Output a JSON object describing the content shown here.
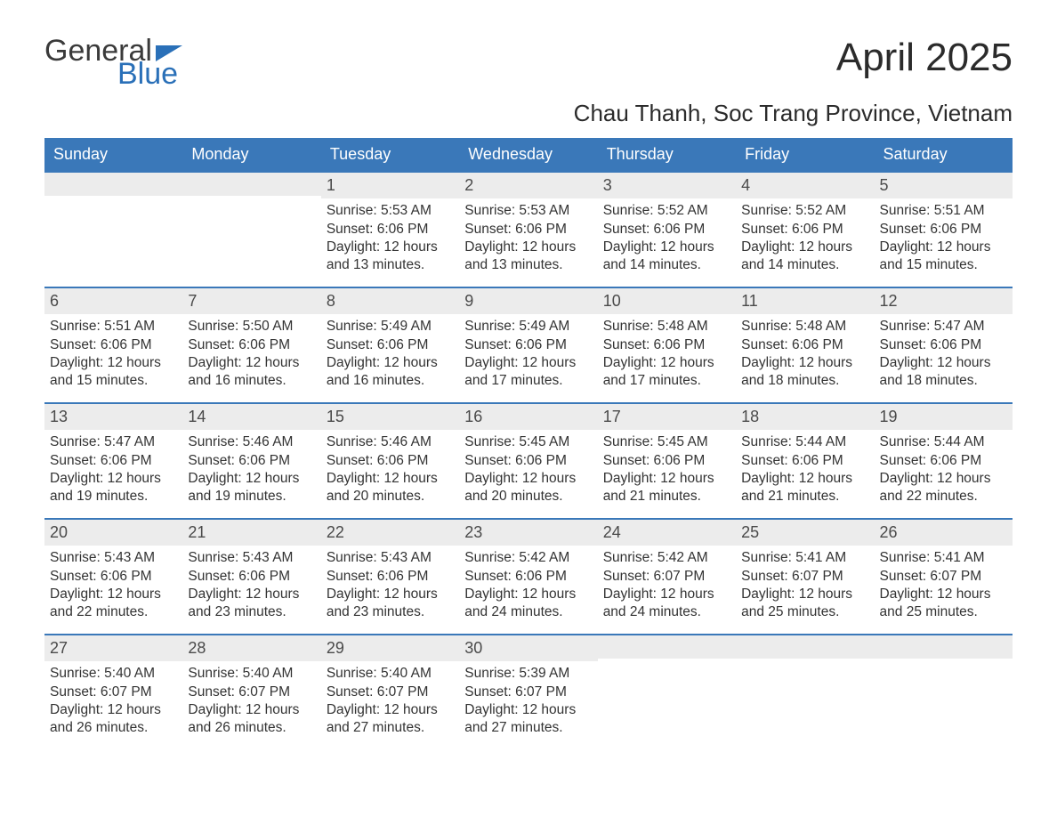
{
  "logo": {
    "word1": "General",
    "word2": "Blue"
  },
  "title": "April 2025",
  "subtitle": "Chau Thanh, Soc Trang Province, Vietnam",
  "colors": {
    "header_bg": "#3a78b9",
    "header_text": "#ffffff",
    "week_border": "#3a78b9",
    "daynum_bg": "#ececec",
    "text": "#333333",
    "logo_blue": "#2a70b8"
  },
  "dow": [
    "Sunday",
    "Monday",
    "Tuesday",
    "Wednesday",
    "Thursday",
    "Friday",
    "Saturday"
  ],
  "weeks": [
    [
      {
        "num": "",
        "lines": []
      },
      {
        "num": "",
        "lines": []
      },
      {
        "num": "1",
        "lines": [
          "Sunrise: 5:53 AM",
          "Sunset: 6:06 PM",
          "Daylight: 12 hours",
          "and 13 minutes."
        ]
      },
      {
        "num": "2",
        "lines": [
          "Sunrise: 5:53 AM",
          "Sunset: 6:06 PM",
          "Daylight: 12 hours",
          "and 13 minutes."
        ]
      },
      {
        "num": "3",
        "lines": [
          "Sunrise: 5:52 AM",
          "Sunset: 6:06 PM",
          "Daylight: 12 hours",
          "and 14 minutes."
        ]
      },
      {
        "num": "4",
        "lines": [
          "Sunrise: 5:52 AM",
          "Sunset: 6:06 PM",
          "Daylight: 12 hours",
          "and 14 minutes."
        ]
      },
      {
        "num": "5",
        "lines": [
          "Sunrise: 5:51 AM",
          "Sunset: 6:06 PM",
          "Daylight: 12 hours",
          "and 15 minutes."
        ]
      }
    ],
    [
      {
        "num": "6",
        "lines": [
          "Sunrise: 5:51 AM",
          "Sunset: 6:06 PM",
          "Daylight: 12 hours",
          "and 15 minutes."
        ]
      },
      {
        "num": "7",
        "lines": [
          "Sunrise: 5:50 AM",
          "Sunset: 6:06 PM",
          "Daylight: 12 hours",
          "and 16 minutes."
        ]
      },
      {
        "num": "8",
        "lines": [
          "Sunrise: 5:49 AM",
          "Sunset: 6:06 PM",
          "Daylight: 12 hours",
          "and 16 minutes."
        ]
      },
      {
        "num": "9",
        "lines": [
          "Sunrise: 5:49 AM",
          "Sunset: 6:06 PM",
          "Daylight: 12 hours",
          "and 17 minutes."
        ]
      },
      {
        "num": "10",
        "lines": [
          "Sunrise: 5:48 AM",
          "Sunset: 6:06 PM",
          "Daylight: 12 hours",
          "and 17 minutes."
        ]
      },
      {
        "num": "11",
        "lines": [
          "Sunrise: 5:48 AM",
          "Sunset: 6:06 PM",
          "Daylight: 12 hours",
          "and 18 minutes."
        ]
      },
      {
        "num": "12",
        "lines": [
          "Sunrise: 5:47 AM",
          "Sunset: 6:06 PM",
          "Daylight: 12 hours",
          "and 18 minutes."
        ]
      }
    ],
    [
      {
        "num": "13",
        "lines": [
          "Sunrise: 5:47 AM",
          "Sunset: 6:06 PM",
          "Daylight: 12 hours",
          "and 19 minutes."
        ]
      },
      {
        "num": "14",
        "lines": [
          "Sunrise: 5:46 AM",
          "Sunset: 6:06 PM",
          "Daylight: 12 hours",
          "and 19 minutes."
        ]
      },
      {
        "num": "15",
        "lines": [
          "Sunrise: 5:46 AM",
          "Sunset: 6:06 PM",
          "Daylight: 12 hours",
          "and 20 minutes."
        ]
      },
      {
        "num": "16",
        "lines": [
          "Sunrise: 5:45 AM",
          "Sunset: 6:06 PM",
          "Daylight: 12 hours",
          "and 20 minutes."
        ]
      },
      {
        "num": "17",
        "lines": [
          "Sunrise: 5:45 AM",
          "Sunset: 6:06 PM",
          "Daylight: 12 hours",
          "and 21 minutes."
        ]
      },
      {
        "num": "18",
        "lines": [
          "Sunrise: 5:44 AM",
          "Sunset: 6:06 PM",
          "Daylight: 12 hours",
          "and 21 minutes."
        ]
      },
      {
        "num": "19",
        "lines": [
          "Sunrise: 5:44 AM",
          "Sunset: 6:06 PM",
          "Daylight: 12 hours",
          "and 22 minutes."
        ]
      }
    ],
    [
      {
        "num": "20",
        "lines": [
          "Sunrise: 5:43 AM",
          "Sunset: 6:06 PM",
          "Daylight: 12 hours",
          "and 22 minutes."
        ]
      },
      {
        "num": "21",
        "lines": [
          "Sunrise: 5:43 AM",
          "Sunset: 6:06 PM",
          "Daylight: 12 hours",
          "and 23 minutes."
        ]
      },
      {
        "num": "22",
        "lines": [
          "Sunrise: 5:43 AM",
          "Sunset: 6:06 PM",
          "Daylight: 12 hours",
          "and 23 minutes."
        ]
      },
      {
        "num": "23",
        "lines": [
          "Sunrise: 5:42 AM",
          "Sunset: 6:06 PM",
          "Daylight: 12 hours",
          "and 24 minutes."
        ]
      },
      {
        "num": "24",
        "lines": [
          "Sunrise: 5:42 AM",
          "Sunset: 6:07 PM",
          "Daylight: 12 hours",
          "and 24 minutes."
        ]
      },
      {
        "num": "25",
        "lines": [
          "Sunrise: 5:41 AM",
          "Sunset: 6:07 PM",
          "Daylight: 12 hours",
          "and 25 minutes."
        ]
      },
      {
        "num": "26",
        "lines": [
          "Sunrise: 5:41 AM",
          "Sunset: 6:07 PM",
          "Daylight: 12 hours",
          "and 25 minutes."
        ]
      }
    ],
    [
      {
        "num": "27",
        "lines": [
          "Sunrise: 5:40 AM",
          "Sunset: 6:07 PM",
          "Daylight: 12 hours",
          "and 26 minutes."
        ]
      },
      {
        "num": "28",
        "lines": [
          "Sunrise: 5:40 AM",
          "Sunset: 6:07 PM",
          "Daylight: 12 hours",
          "and 26 minutes."
        ]
      },
      {
        "num": "29",
        "lines": [
          "Sunrise: 5:40 AM",
          "Sunset: 6:07 PM",
          "Daylight: 12 hours",
          "and 27 minutes."
        ]
      },
      {
        "num": "30",
        "lines": [
          "Sunrise: 5:39 AM",
          "Sunset: 6:07 PM",
          "Daylight: 12 hours",
          "and 27 minutes."
        ]
      },
      {
        "num": "",
        "lines": []
      },
      {
        "num": "",
        "lines": []
      },
      {
        "num": "",
        "lines": []
      }
    ]
  ]
}
